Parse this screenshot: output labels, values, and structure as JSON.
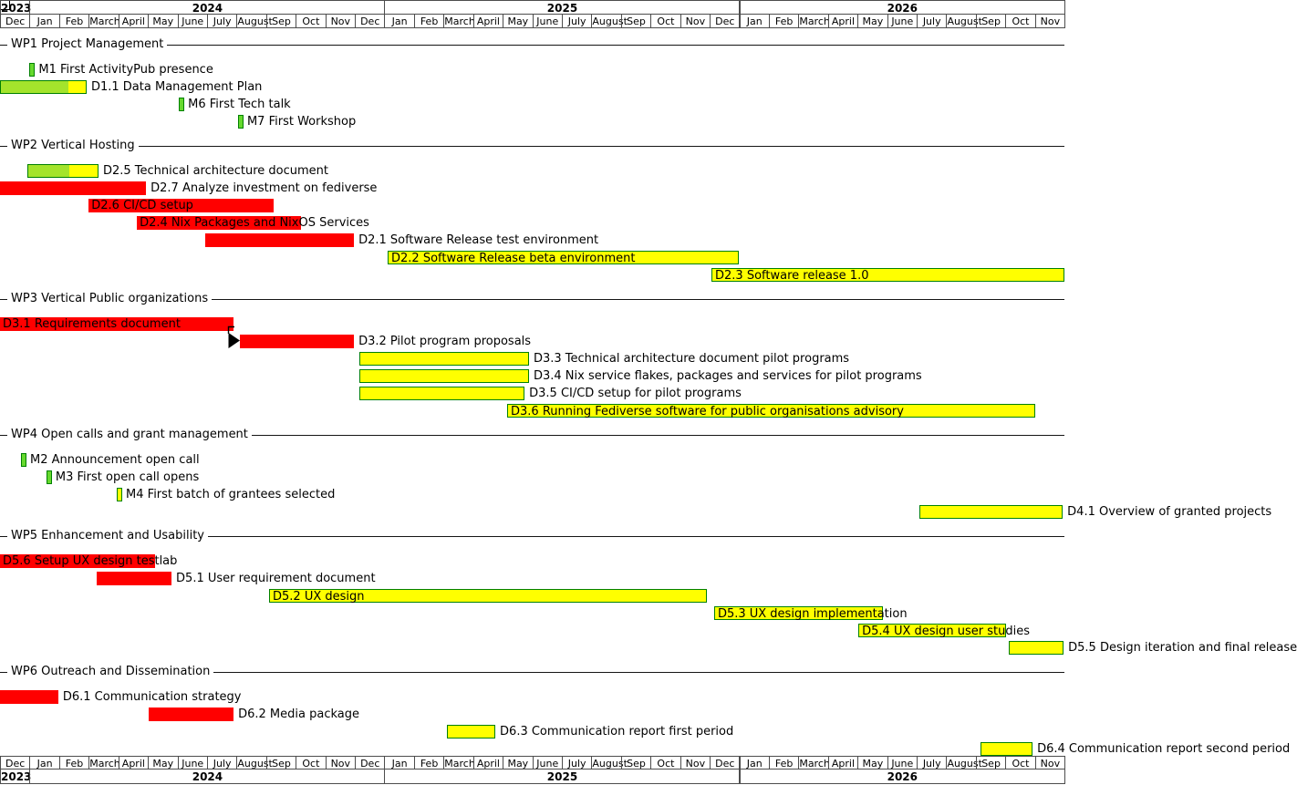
{
  "colors": {
    "late_red": "#ff0000",
    "planned_yellow": "#ffff00",
    "done_green": "#a4e42c",
    "milestone_green": "#66d92e",
    "bar_border_green": "#008000",
    "grid_border": "#4d4d4d",
    "text": "#000000",
    "background": "#ffffff"
  },
  "chart_data": {
    "type": "bar",
    "subtype": "gantt-project-timeline",
    "x_axis": {
      "unit": "month",
      "start": "Dec 2023",
      "end": "Nov 2026",
      "axis_shown_top_and_bottom": true,
      "years": [
        {
          "label": "2023",
          "month_span": 1
        },
        {
          "label": "2024",
          "month_span": 12
        },
        {
          "label": "2025",
          "month_span": 12
        },
        {
          "label": "2026",
          "month_span": 11
        }
      ],
      "month_labels": [
        "Dec",
        "Jan",
        "Feb",
        "March",
        "April",
        "May",
        "June",
        "July",
        "August",
        "Sep",
        "Oct",
        "Nov",
        "Dec",
        "Jan",
        "Feb",
        "March",
        "April",
        "May",
        "June",
        "July",
        "August",
        "Sep",
        "Oct",
        "Nov",
        "Dec",
        "Jan",
        "Feb",
        "March",
        "April",
        "May",
        "June",
        "July",
        "August",
        "Sep",
        "Oct",
        "Nov"
      ]
    },
    "sections": [
      {
        "name": "WP1 Project Management",
        "rows": [
          {
            "id": "M1",
            "kind": "milestone",
            "color": "green",
            "label": "M1 First ActivityPub presence",
            "start": 1.0,
            "date": "Jan 2024"
          },
          {
            "id": "D1.1",
            "kind": "task",
            "color": "progress",
            "label": "D1.1 Data Management Plan",
            "label_inside": false,
            "start": 0,
            "end": 2.93,
            "progress": 0.8,
            "period": "Dec 2023 - Feb 2024"
          },
          {
            "id": "M6",
            "kind": "milestone",
            "color": "green",
            "label": "M6 First Tech talk",
            "start": 6.05,
            "date": "Jun 2024"
          },
          {
            "id": "M7",
            "kind": "milestone",
            "color": "green",
            "label": "M7 First Workshop",
            "start": 8.05,
            "date": "Aug 2024"
          }
        ]
      },
      {
        "name": "WP2 Vertical Hosting",
        "rows": [
          {
            "id": "D2.5",
            "kind": "task",
            "color": "progress",
            "label": "D2.5 Technical architecture document",
            "label_inside": false,
            "start": 0.93,
            "end": 3.33,
            "progress": 0.59,
            "period": "Jan 2024 - Mar 2024"
          },
          {
            "id": "D2.7",
            "kind": "task",
            "color": "red",
            "label": "D2.7 Analyze investment on fediverse",
            "label_inside": false,
            "start": 0,
            "end": 4.94,
            "period": "Dec 2023 - Apr 2024"
          },
          {
            "id": "D2.6",
            "kind": "task",
            "color": "red",
            "label": "D2.6 CI/CD setup",
            "label_inside": true,
            "start": 3.0,
            "end": 9.25,
            "period": "Mar 2024 - Sep 2024"
          },
          {
            "id": "D2.4",
            "kind": "task",
            "color": "red",
            "label": "D2.4 Nix Packages and NixOS Services",
            "label_inside": true,
            "start": 4.63,
            "end": 10.18,
            "period": "Apr 2024 - Oct 2024"
          },
          {
            "id": "D2.1",
            "kind": "task",
            "color": "red",
            "label": "D2.1 Software Release test environment",
            "label_inside": false,
            "start": 6.94,
            "end": 11.97,
            "period": "Jul 2024 - Nov 2024"
          },
          {
            "id": "D2.2",
            "kind": "task",
            "color": "yellow",
            "label": "D2.2 Software Release beta environment",
            "label_inside": true,
            "start": 13.11,
            "end": 24.99,
            "period": "Jan 2025 - Dec 2025"
          },
          {
            "id": "D2.3",
            "kind": "task",
            "color": "yellow",
            "label": "D2.3 Software release 1.0",
            "label_inside": true,
            "start": 24.06,
            "end": 36.0,
            "period": "Dec 2025 - Nov 2026"
          }
        ]
      },
      {
        "name": "WP3 Vertical Public organizations",
        "rows": [
          {
            "id": "D3.1",
            "kind": "task",
            "color": "red",
            "label": "D3.1 Requirements document",
            "label_inside": true,
            "start": 0,
            "end": 7.9,
            "period": "Dec 2023 - Jul 2024"
          },
          {
            "id": "D3.2",
            "kind": "task",
            "color": "red",
            "label": "D3.2 Pilot program proposals",
            "label_inside": false,
            "start": 8.11,
            "end": 11.97,
            "period": "Aug 2024 - Nov 2024"
          },
          {
            "id": "D3.3",
            "kind": "task",
            "color": "yellow",
            "label": "D3.3 Technical architecture document pilot programs",
            "label_inside": false,
            "start": 12.15,
            "end": 17.89,
            "period": "Dec 2024 - May 2025"
          },
          {
            "id": "D3.4",
            "kind": "task",
            "color": "yellow",
            "label": "D3.4 Nix service flakes, packages and services for pilot programs",
            "label_inside": false,
            "start": 12.15,
            "end": 17.89,
            "period": "Dec 2024 - May 2025"
          },
          {
            "id": "D3.5",
            "kind": "task",
            "color": "yellow",
            "label": "D3.5 CI/CD setup for pilot programs",
            "label_inside": false,
            "start": 12.15,
            "end": 17.74,
            "period": "Dec 2024 - May 2025"
          },
          {
            "id": "D3.6",
            "kind": "task",
            "color": "yellow",
            "label": "D3.6 Running Fediverse software for public organisations advisory",
            "label_inside": true,
            "start": 17.15,
            "end": 35.01,
            "period": "May 2025 - Oct 2026"
          }
        ]
      },
      {
        "name": "WP4 Open calls and grant management",
        "rows": [
          {
            "id": "M2",
            "kind": "milestone",
            "color": "green",
            "label": "M2 Announcement open call",
            "start": 0.71,
            "date": "Dec 2023"
          },
          {
            "id": "M3",
            "kind": "milestone",
            "color": "green",
            "label": "M3 First open call opens",
            "start": 1.57,
            "date": "Jan 2024"
          },
          {
            "id": "M4",
            "kind": "milestone",
            "color": "yellow",
            "label": "M4 First batch of grantees selected",
            "start": 3.95,
            "date": "Apr 2024"
          },
          {
            "id": "D4.1",
            "kind": "task",
            "color": "yellow",
            "label": "D4.1 Overview of granted projects",
            "label_inside": false,
            "start": 31.09,
            "end": 35.94,
            "period": "Jul 2026 - Nov 2026"
          }
        ]
      },
      {
        "name": "WP5 Enhancement and Usability",
        "rows": [
          {
            "id": "D5.6",
            "kind": "task",
            "color": "red",
            "label": "D5.6 Setup UX design testlab",
            "label_inside": true,
            "start": 0,
            "end": 5.24,
            "period": "Dec 2023 - May 2024"
          },
          {
            "id": "D5.1",
            "kind": "task",
            "color": "red",
            "label": "D5.1 User requirement document",
            "label_inside": false,
            "start": 3.27,
            "end": 5.8,
            "period": "Mar 2024 - May 2024"
          },
          {
            "id": "D5.2",
            "kind": "task",
            "color": "yellow",
            "label": "D5.2 UX design",
            "label_inside": true,
            "start": 9.1,
            "end": 23.9,
            "period": "Sep 2024 - Nov 2025"
          },
          {
            "id": "D5.3",
            "kind": "task",
            "color": "yellow",
            "label": "D5.3 UX design implementation",
            "label_inside": true,
            "start": 24.15,
            "end": 29.86,
            "period": "Dec 2025 - May 2026"
          },
          {
            "id": "D5.4",
            "kind": "task",
            "color": "yellow",
            "label": "D5.4 UX design user studies",
            "label_inside": true,
            "start": 29.03,
            "end": 34.02,
            "period": "May 2026 - Sep 2026"
          },
          {
            "id": "D5.5",
            "kind": "task",
            "color": "yellow",
            "label": "D5.5 Design iteration and final release",
            "label_inside": false,
            "start": 34.12,
            "end": 35.97,
            "period": "Oct 2026 - Nov 2026"
          }
        ]
      },
      {
        "name": "WP6 Outreach and Dissemination",
        "rows": [
          {
            "id": "D6.1",
            "kind": "task",
            "color": "red",
            "label": "D6.1 Communication strategy",
            "label_inside": false,
            "start": 0,
            "end": 1.97,
            "period": "Dec 2023 - Jan 2024"
          },
          {
            "id": "D6.2",
            "kind": "task",
            "color": "red",
            "label": "D6.2 Media package",
            "label_inside": false,
            "start": 5.03,
            "end": 7.9,
            "period": "May 2024 - Jul 2024"
          },
          {
            "id": "D6.3",
            "kind": "task",
            "color": "yellow",
            "label": "D6.3 Communication report first period",
            "label_inside": false,
            "start": 15.11,
            "end": 16.75,
            "period": "Mar 2025 - Apr 2025"
          },
          {
            "id": "D6.4",
            "kind": "task",
            "color": "yellow",
            "label": "D6.4 Communication report second period",
            "label_inside": false,
            "start": 33.16,
            "end": 34.92,
            "period": "Sep 2026 - Oct 2026"
          }
        ]
      }
    ],
    "dependency_edit": {
      "from": "D3.1",
      "to": "D3.2",
      "handle": "white-square-handle",
      "cursor": "link-drag-arrow-cursor"
    }
  }
}
